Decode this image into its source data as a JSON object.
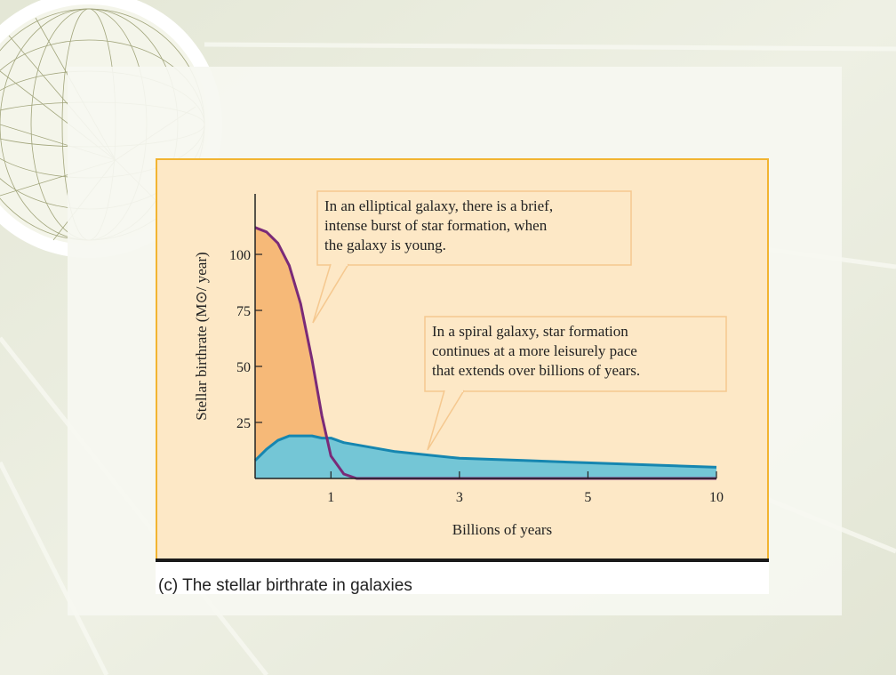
{
  "chart_data": {
    "type": "area",
    "caption": "(c) The stellar birthrate in galaxies",
    "xlabel": "Billions of years",
    "ylabel": "Stellar birthrate (M⊙/ year)",
    "x": [
      0,
      0.15,
      0.3,
      0.45,
      0.6,
      0.75,
      0.88,
      1,
      1.2,
      1.4,
      2,
      3,
      4,
      5,
      7.5,
      10
    ],
    "series": [
      {
        "color": "#f6b978",
        "line_color": "#7a2a78",
        "values": [
          112,
          110,
          105,
          95,
          78,
          53,
          28,
          10,
          2,
          0,
          0,
          0,
          0,
          0,
          0,
          0
        ]
      },
      {
        "color": "#74c6d6",
        "line_color": "#1686b0",
        "values": [
          8,
          13,
          17,
          19,
          19,
          19,
          18,
          18,
          16,
          15,
          12,
          9,
          8,
          7,
          6,
          5
        ]
      }
    ],
    "xlim": [
      0,
      10
    ],
    "xticks": [
      1,
      3,
      5,
      10
    ],
    "ylim": [
      0,
      127
    ],
    "yticks": [
      25,
      50,
      75,
      100
    ],
    "annotations": [
      {
        "lines": [
          "In an elliptical galaxy, there is a brief,",
          "intense burst of star formation, when",
          "the galaxy is young."
        ]
      },
      {
        "lines": [
          "In a spiral galaxy, star formation",
          "continues at a more leisurely pace",
          "that extends over billions of years."
        ]
      }
    ]
  }
}
